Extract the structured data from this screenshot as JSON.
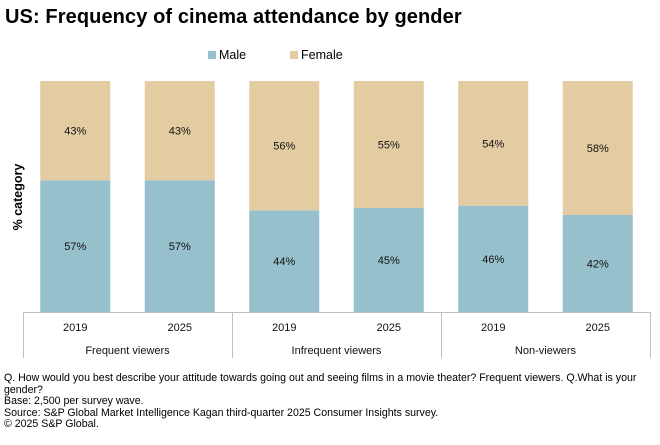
{
  "title": "US: Frequency of cinema attendance by gender",
  "legend": [
    {
      "name": "Male",
      "color": "#95c0cc"
    },
    {
      "name": "Female",
      "color": "#e3cca2"
    }
  ],
  "chart_data": {
    "type": "bar",
    "stacked": true,
    "title": "US: Frequency of cinema attendance by gender",
    "ylabel": "% category",
    "xlabel": "",
    "ylim": [
      0,
      100
    ],
    "grid": false,
    "legend_position": "top",
    "groups": [
      {
        "label": "Frequent viewers",
        "categories": [
          "2019",
          "2025"
        ]
      },
      {
        "label": "Infrequent viewers",
        "categories": [
          "2019",
          "2025"
        ]
      },
      {
        "label": "Non-viewers",
        "categories": [
          "2019",
          "2025"
        ]
      }
    ],
    "categories": [
      "Frequent viewers 2019",
      "Frequent viewers 2025",
      "Infrequent viewers 2019",
      "Infrequent viewers 2025",
      "Non-viewers 2019",
      "Non-viewers 2025"
    ],
    "series": [
      {
        "name": "Male",
        "color": "#95c0cc",
        "values": [
          57,
          57,
          44,
          45,
          46,
          42
        ],
        "labels": [
          "57%",
          "57%",
          "44%",
          "45%",
          "46%",
          "42%"
        ]
      },
      {
        "name": "Female",
        "color": "#e3cca2",
        "values": [
          43,
          43,
          56,
          55,
          54,
          58
        ],
        "labels": [
          "43%",
          "43%",
          "56%",
          "55%",
          "54%",
          "58%"
        ]
      }
    ]
  },
  "notes": [
    "Q. How would you best describe your attitude towards going out and seeing films in a movie theater? Frequent viewers. Q.What is your gender?",
    "Base: 2,500 per survey wave.",
    "Source: S&P Global Market Intelligence Kagan third-quarter 2025 Consumer Insights survey.",
    "© 2025 S&P Global."
  ]
}
